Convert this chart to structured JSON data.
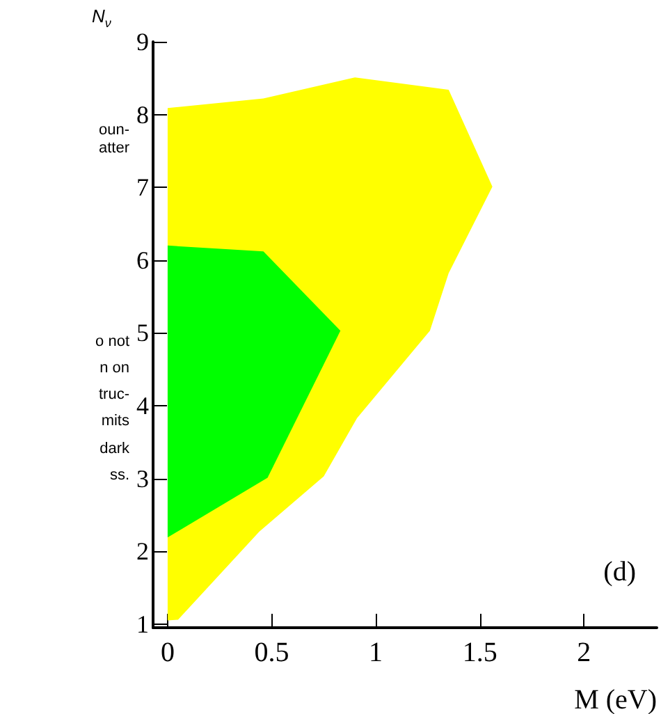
{
  "chart_data": {
    "type": "area",
    "ylabel": "N$_{ν}$",
    "xlabel": "M (eV)",
    "xlim": [
      -0.07,
      2.35
    ],
    "xticks": [
      0,
      0.5,
      1,
      1.5,
      2
    ],
    "ylim": [
      0.95,
      9
    ],
    "yticks": [
      1,
      2,
      3,
      4,
      5,
      6,
      7,
      8,
      9
    ],
    "grid": false,
    "series": [
      {
        "color": "#ffff00",
        "x": [
          0,
          0.05,
          0.44,
          0.75,
          0.91,
          1.26,
          1.35,
          1.56,
          1.35,
          0.9,
          0.46,
          0
        ],
        "values": [
          1.05,
          1.06,
          2.27,
          3.03,
          3.83,
          5.03,
          5.82,
          7.01,
          8.34,
          8.51,
          8.22,
          8.09
        ]
      },
      {
        "color": "#00ff00",
        "x": [
          0,
          0.48,
          0.83,
          0.46,
          0
        ],
        "values": [
          2.19,
          3.01,
          5.03,
          6.12,
          6.2
        ]
      }
    ],
    "annotations": [
      "oun-",
      "atter",
      "o not",
      "n on",
      "truc-",
      "mits",
      "dark",
      "ss.",
      "(d)"
    ]
  }
}
